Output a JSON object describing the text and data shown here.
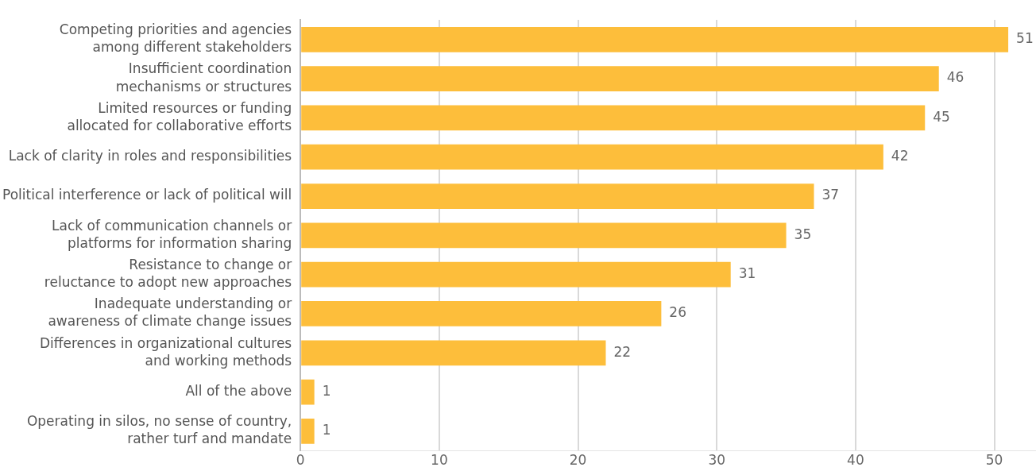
{
  "chart_data": {
    "type": "bar",
    "orientation": "horizontal",
    "categories": [
      "Competing priorities and agencies\namong different stakeholders",
      "Insufficient coordination\nmechanisms or structures",
      "Limited resources or funding\nallocated for collaborative efforts",
      "Lack of clarity in roles and responsibilities",
      "Political interference or lack of political will",
      "Lack of communication channels or\nplatforms for information sharing",
      "Resistance to change or\nreluctance to adopt new approaches",
      "Inadequate understanding or\nawareness of climate change issues",
      "Differences in organizational cultures\nand working methods",
      "All of the above",
      "Operating in silos, no sense of country,\nrather turf and mandate"
    ],
    "values": [
      51,
      46,
      45,
      42,
      37,
      35,
      31,
      26,
      22,
      1,
      1
    ],
    "color": "#fdbe3b",
    "xlim": [
      0,
      53
    ],
    "xticks": [
      0,
      10,
      20,
      30,
      40,
      50
    ],
    "grid": "x",
    "data_labels": true,
    "legend": false
  }
}
